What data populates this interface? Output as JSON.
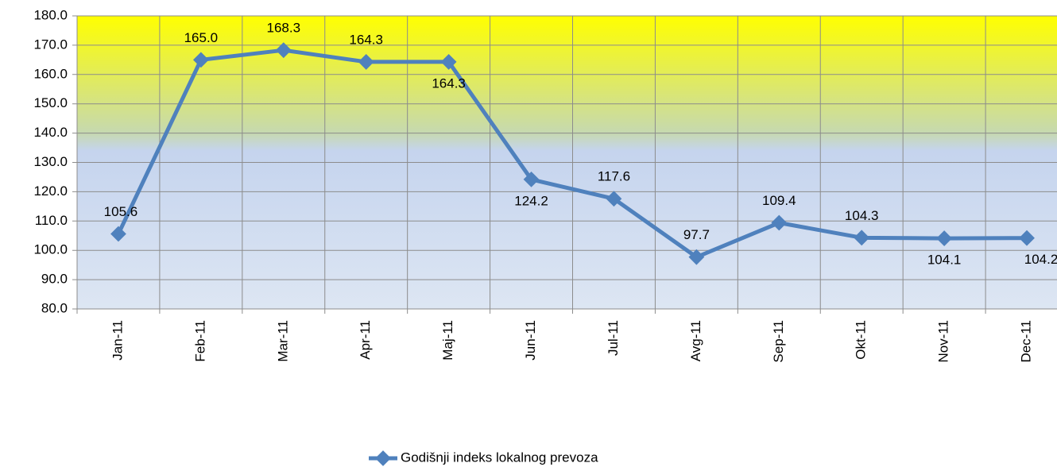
{
  "chart_data": {
    "type": "line",
    "categories": [
      "Jan-11",
      "Feb-11",
      "Mar-11",
      "Apr-11",
      "Maj-11",
      "Jun-11",
      "Jul-11",
      "Avg-11",
      "Sep-11",
      "Okt-11",
      "Nov-11",
      "Dec-11"
    ],
    "series": [
      {
        "name": "Godišnji indeks lokalnog prevoza",
        "color": "#4f81bd",
        "values": [
          105.6,
          165.0,
          168.3,
          164.3,
          164.3,
          124.2,
          117.6,
          97.7,
          109.4,
          104.3,
          104.1,
          104.2
        ],
        "value_labels": [
          "105.6",
          "165.0",
          "168.3",
          "164.3",
          "164.3",
          "124.2",
          "117.6",
          "97.7",
          "109.4",
          "104.3",
          "104.1",
          "104.2"
        ]
      }
    ],
    "ylim": [
      80,
      180
    ],
    "yticks": [
      {
        "value": 80,
        "label": "80.0"
      },
      {
        "value": 90,
        "label": "90.0"
      },
      {
        "value": 100,
        "label": "100.0"
      },
      {
        "value": 110,
        "label": "110.0"
      },
      {
        "value": 120,
        "label": "120.0"
      },
      {
        "value": 130,
        "label": "130.0"
      },
      {
        "value": 140,
        "label": "140.0"
      },
      {
        "value": 150,
        "label": "150.0"
      },
      {
        "value": 160,
        "label": "160.0"
      },
      {
        "value": 170,
        "label": "170.0"
      },
      {
        "value": 180,
        "label": "180.0"
      }
    ],
    "grid": true,
    "legend": "bottom"
  }
}
